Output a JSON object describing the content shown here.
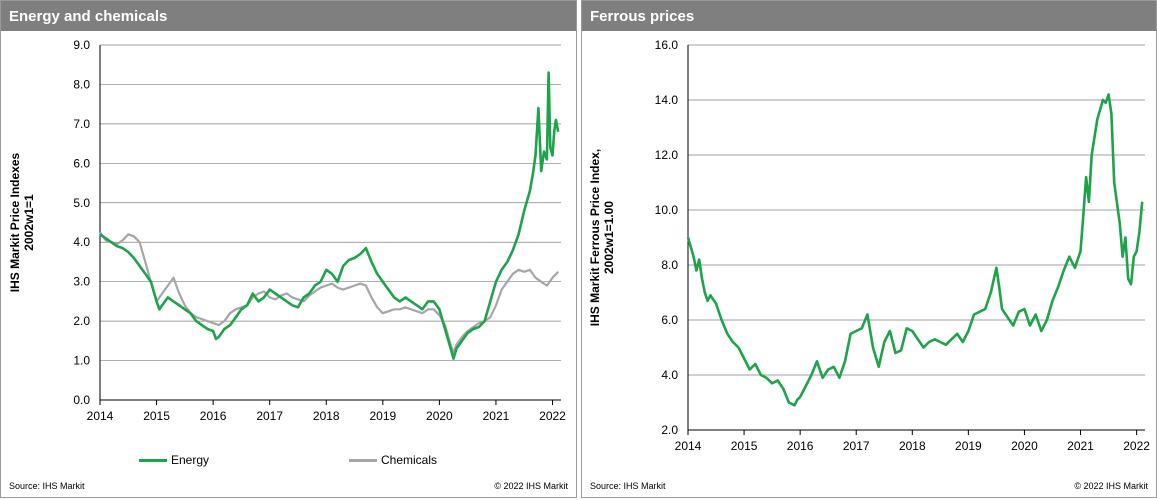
{
  "panels": {
    "left": {
      "title": "Energy and chemicals",
      "source": "Source:  IHS Markit",
      "copyright": "© 2022  IHS Markit"
    },
    "right": {
      "title": "Ferrous prices",
      "source": "Source:  IHS Markit",
      "copyright": "© 2022  IHS Markit"
    }
  },
  "colors": {
    "energy": "#1ea34a",
    "chemicals": "#a6a6a6",
    "ferrous": "#1ea34a",
    "grid": "#808080"
  },
  "chart_data": [
    {
      "type": "line",
      "title": "Energy and chemicals",
      "ylabel": [
        "IHS Markit Price Indexes",
        "2002w1=1"
      ],
      "xlabel": "",
      "xlim": [
        2014,
        2022.15
      ],
      "ylim": [
        0,
        9
      ],
      "yticks": [
        "0.0",
        "1.0",
        "2.0",
        "3.0",
        "4.0",
        "5.0",
        "6.0",
        "7.0",
        "8.0",
        "9.0"
      ],
      "xticks": [
        "2014",
        "2015",
        "2016",
        "2017",
        "2018",
        "2019",
        "2020",
        "2021",
        "2022"
      ],
      "grid": true,
      "legend": "bottom",
      "series": [
        {
          "name": "Energy",
          "x": [
            2014.0,
            2014.1,
            2014.2,
            2014.3,
            2014.4,
            2014.5,
            2014.6,
            2014.7,
            2014.8,
            2014.9,
            2015.0,
            2015.05,
            2015.1,
            2015.2,
            2015.3,
            2015.4,
            2015.5,
            2015.6,
            2015.7,
            2015.8,
            2015.9,
            2016.0,
            2016.05,
            2016.1,
            2016.2,
            2016.3,
            2016.4,
            2016.5,
            2016.6,
            2016.7,
            2016.8,
            2016.9,
            2017.0,
            2017.1,
            2017.2,
            2017.3,
            2017.4,
            2017.5,
            2017.6,
            2017.7,
            2017.8,
            2017.9,
            2018.0,
            2018.1,
            2018.2,
            2018.3,
            2018.4,
            2018.5,
            2018.6,
            2018.7,
            2018.8,
            2018.9,
            2019.0,
            2019.1,
            2019.2,
            2019.3,
            2019.4,
            2019.5,
            2019.6,
            2019.7,
            2019.8,
            2019.9,
            2020.0,
            2020.1,
            2020.2,
            2020.25,
            2020.3,
            2020.4,
            2020.5,
            2020.6,
            2020.7,
            2020.8,
            2020.9,
            2021.0,
            2021.1,
            2021.2,
            2021.3,
            2021.4,
            2021.5,
            2021.6,
            2021.65,
            2021.7,
            2021.75,
            2021.8,
            2021.85,
            2021.9,
            2021.93,
            2021.96,
            2022.0,
            2022.03,
            2022.06,
            2022.1
          ],
          "values": [
            4.2,
            4.1,
            4.0,
            3.9,
            3.85,
            3.75,
            3.6,
            3.4,
            3.2,
            3.0,
            2.5,
            2.3,
            2.4,
            2.6,
            2.5,
            2.4,
            2.3,
            2.2,
            2.0,
            1.9,
            1.8,
            1.75,
            1.55,
            1.6,
            1.8,
            1.9,
            2.1,
            2.3,
            2.4,
            2.7,
            2.5,
            2.6,
            2.8,
            2.7,
            2.6,
            2.5,
            2.4,
            2.35,
            2.6,
            2.7,
            2.9,
            3.0,
            3.3,
            3.2,
            3.0,
            3.4,
            3.55,
            3.6,
            3.7,
            3.85,
            3.5,
            3.2,
            3.0,
            2.8,
            2.6,
            2.5,
            2.6,
            2.5,
            2.4,
            2.3,
            2.5,
            2.5,
            2.3,
            1.8,
            1.3,
            1.05,
            1.3,
            1.5,
            1.7,
            1.8,
            1.85,
            2.0,
            2.5,
            3.0,
            3.3,
            3.5,
            3.8,
            4.2,
            4.8,
            5.3,
            5.7,
            6.2,
            7.4,
            5.8,
            6.3,
            6.1,
            8.3,
            6.4,
            6.2,
            6.8,
            7.1,
            6.8
          ]
        },
        {
          "name": "Chemicals",
          "x": [
            2014.0,
            2014.1,
            2014.2,
            2014.3,
            2014.4,
            2014.5,
            2014.6,
            2014.7,
            2014.8,
            2014.9,
            2015.0,
            2015.1,
            2015.2,
            2015.3,
            2015.4,
            2015.5,
            2015.6,
            2015.7,
            2015.8,
            2015.9,
            2016.0,
            2016.1,
            2016.2,
            2016.3,
            2016.4,
            2016.5,
            2016.6,
            2016.7,
            2016.8,
            2016.9,
            2017.0,
            2017.1,
            2017.2,
            2017.3,
            2017.4,
            2017.5,
            2017.6,
            2017.7,
            2017.8,
            2017.9,
            2018.0,
            2018.1,
            2018.2,
            2018.3,
            2018.4,
            2018.5,
            2018.6,
            2018.7,
            2018.8,
            2018.9,
            2019.0,
            2019.1,
            2019.2,
            2019.3,
            2019.4,
            2019.5,
            2019.6,
            2019.7,
            2019.8,
            2019.9,
            2020.0,
            2020.1,
            2020.2,
            2020.25,
            2020.3,
            2020.4,
            2020.5,
            2020.6,
            2020.7,
            2020.8,
            2020.9,
            2021.0,
            2021.1,
            2021.2,
            2021.3,
            2021.4,
            2021.5,
            2021.6,
            2021.7,
            2021.8,
            2021.9,
            2022.0,
            2022.1
          ],
          "values": [
            4.25,
            4.05,
            4.0,
            3.95,
            4.05,
            4.2,
            4.15,
            4.0,
            3.5,
            3.0,
            2.5,
            2.7,
            2.9,
            3.1,
            2.7,
            2.4,
            2.2,
            2.1,
            2.05,
            2.0,
            1.95,
            1.9,
            2.0,
            2.2,
            2.3,
            2.35,
            2.4,
            2.6,
            2.7,
            2.75,
            2.6,
            2.55,
            2.65,
            2.7,
            2.6,
            2.55,
            2.5,
            2.65,
            2.75,
            2.85,
            2.9,
            2.95,
            2.85,
            2.8,
            2.85,
            2.9,
            2.95,
            2.9,
            2.6,
            2.35,
            2.2,
            2.25,
            2.3,
            2.3,
            2.35,
            2.3,
            2.25,
            2.2,
            2.3,
            2.3,
            2.15,
            1.9,
            1.4,
            1.2,
            1.4,
            1.6,
            1.75,
            1.85,
            1.95,
            2.0,
            2.1,
            2.4,
            2.8,
            3.0,
            3.2,
            3.3,
            3.25,
            3.3,
            3.1,
            3.0,
            2.9,
            3.1,
            3.25
          ]
        }
      ]
    },
    {
      "type": "line",
      "title": "Ferrous prices",
      "ylabel": [
        "IHS Markit Ferrous Price Index,",
        "2002w1=1.00"
      ],
      "xlabel": "",
      "xlim": [
        2014,
        2022.15
      ],
      "ylim": [
        2,
        16
      ],
      "yticks": [
        "2.0",
        "4.0",
        "6.0",
        "8.0",
        "10.0",
        "12.0",
        "14.0",
        "16.0"
      ],
      "xticks": [
        "2014",
        "2015",
        "2016",
        "2017",
        "2018",
        "2019",
        "2020",
        "2021",
        "2022"
      ],
      "grid": true,
      "series": [
        {
          "name": "",
          "x": [
            2014.0,
            2014.1,
            2014.15,
            2014.2,
            2014.25,
            2014.3,
            2014.35,
            2014.4,
            2014.5,
            2014.6,
            2014.7,
            2014.8,
            2014.9,
            2015.0,
            2015.1,
            2015.2,
            2015.3,
            2015.4,
            2015.5,
            2015.6,
            2015.7,
            2015.8,
            2015.9,
            2015.95,
            2016.0,
            2016.1,
            2016.2,
            2016.3,
            2016.4,
            2016.5,
            2016.6,
            2016.7,
            2016.8,
            2016.9,
            2017.0,
            2017.1,
            2017.2,
            2017.3,
            2017.4,
            2017.5,
            2017.6,
            2017.7,
            2017.8,
            2017.9,
            2018.0,
            2018.1,
            2018.2,
            2018.3,
            2018.4,
            2018.5,
            2018.6,
            2018.7,
            2018.8,
            2018.9,
            2019.0,
            2019.1,
            2019.2,
            2019.3,
            2019.4,
            2019.5,
            2019.55,
            2019.6,
            2019.7,
            2019.8,
            2019.9,
            2020.0,
            2020.1,
            2020.2,
            2020.3,
            2020.4,
            2020.5,
            2020.6,
            2020.7,
            2020.8,
            2020.9,
            2021.0,
            2021.05,
            2021.1,
            2021.15,
            2021.2,
            2021.3,
            2021.4,
            2021.45,
            2021.5,
            2021.55,
            2021.6,
            2021.7,
            2021.75,
            2021.8,
            2021.85,
            2021.9,
            2021.95,
            2022.0,
            2022.05,
            2022.1
          ],
          "values": [
            9.0,
            8.3,
            7.8,
            8.2,
            7.5,
            7.0,
            6.7,
            6.9,
            6.6,
            6.0,
            5.5,
            5.2,
            5.0,
            4.6,
            4.2,
            4.4,
            4.0,
            3.9,
            3.7,
            3.8,
            3.5,
            3.0,
            2.9,
            3.1,
            3.2,
            3.6,
            4.0,
            4.5,
            3.9,
            4.2,
            4.3,
            3.9,
            4.5,
            5.5,
            5.6,
            5.7,
            6.2,
            5.0,
            4.3,
            5.2,
            5.6,
            4.8,
            4.9,
            5.7,
            5.6,
            5.3,
            5.0,
            5.2,
            5.3,
            5.2,
            5.1,
            5.3,
            5.5,
            5.2,
            5.6,
            6.2,
            6.3,
            6.4,
            7.0,
            7.9,
            7.2,
            6.4,
            6.1,
            5.8,
            6.3,
            6.4,
            5.8,
            6.2,
            5.6,
            6.0,
            6.7,
            7.2,
            7.8,
            8.3,
            7.9,
            8.5,
            9.8,
            11.2,
            10.3,
            12.0,
            13.3,
            14.0,
            13.9,
            14.2,
            13.5,
            11.0,
            9.5,
            8.3,
            9.0,
            7.5,
            7.3,
            8.3,
            8.5,
            9.2,
            10.3
          ]
        }
      ]
    }
  ]
}
